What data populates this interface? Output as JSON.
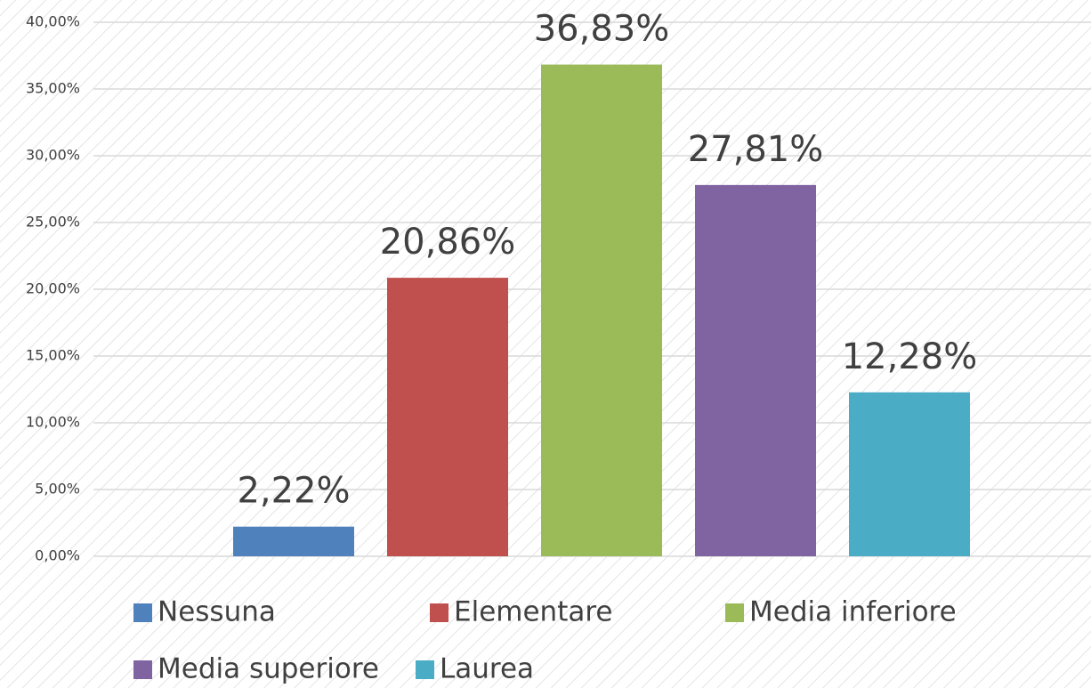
{
  "chart_data": {
    "type": "bar",
    "categories": [
      null
    ],
    "series": [
      {
        "name": "Nessuna",
        "color": "#4f81bd",
        "values": [
          2.22
        ],
        "value_labels": [
          "2,22%"
        ]
      },
      {
        "name": "Elementare",
        "color": "#c0504d",
        "values": [
          20.86
        ],
        "value_labels": [
          "20,86%"
        ]
      },
      {
        "name": "Media inferiore",
        "color": "#9bbb59",
        "values": [
          36.83
        ],
        "value_labels": [
          "36,83%"
        ]
      },
      {
        "name": "Media superiore",
        "color": "#8064a2",
        "values": [
          27.81
        ],
        "value_labels": [
          "27,81%"
        ]
      },
      {
        "name": "Laurea",
        "color": "#4bacc6",
        "values": [
          12.28
        ],
        "value_labels": [
          "12,28%"
        ]
      }
    ],
    "ylim": [
      0,
      40
    ],
    "yticks": [
      {
        "value": 0,
        "label": "0,00%"
      },
      {
        "value": 5,
        "label": "5,00%"
      },
      {
        "value": 10,
        "label": "10,00%"
      },
      {
        "value": 15,
        "label": "15,00%"
      },
      {
        "value": 20,
        "label": "20,00%"
      },
      {
        "value": 25,
        "label": "25,00%"
      },
      {
        "value": 30,
        "label": "30,00%"
      },
      {
        "value": 35,
        "label": "35,00%"
      },
      {
        "value": 40,
        "label": "40,00%"
      }
    ],
    "grid": true,
    "legend": "bottom"
  }
}
